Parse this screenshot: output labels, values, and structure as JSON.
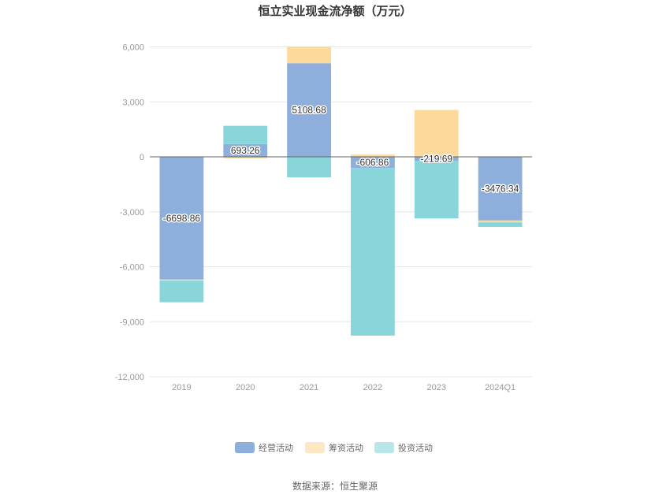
{
  "chart_data": {
    "type": "bar",
    "stacked": true,
    "title": "恒立实业现金流净额（万元）",
    "categories": [
      "2019",
      "2020",
      "2021",
      "2022",
      "2023",
      "2024Q1"
    ],
    "series": [
      {
        "name": "经营活动",
        "color": "#8eaedb",
        "values": [
          -6698.86,
          693.26,
          5108.68,
          -606.86,
          -219.69,
          -3476.34
        ]
      },
      {
        "name": "筹资活动",
        "color": "#fdd99b",
        "values": [
          -60,
          -80,
          900,
          120,
          2560,
          -100
        ]
      },
      {
        "name": "投资活动",
        "color": "#88d5da",
        "values": [
          -1180,
          1000,
          -1120,
          -9150,
          -3140,
          -250
        ]
      }
    ],
    "data_labels": [
      "-6698.86",
      "693.26",
      "5108.68",
      "-606.86",
      "-219.69",
      "-3476.34"
    ],
    "y_ticks": [
      "6,000",
      "3,000",
      "0",
      "-3,000",
      "-6,000",
      "-9,000",
      "-12,000"
    ],
    "ylim": [
      -12000,
      6000
    ],
    "grid": true,
    "legend_position": "bottom"
  },
  "source": "数据来源：恒生聚源"
}
